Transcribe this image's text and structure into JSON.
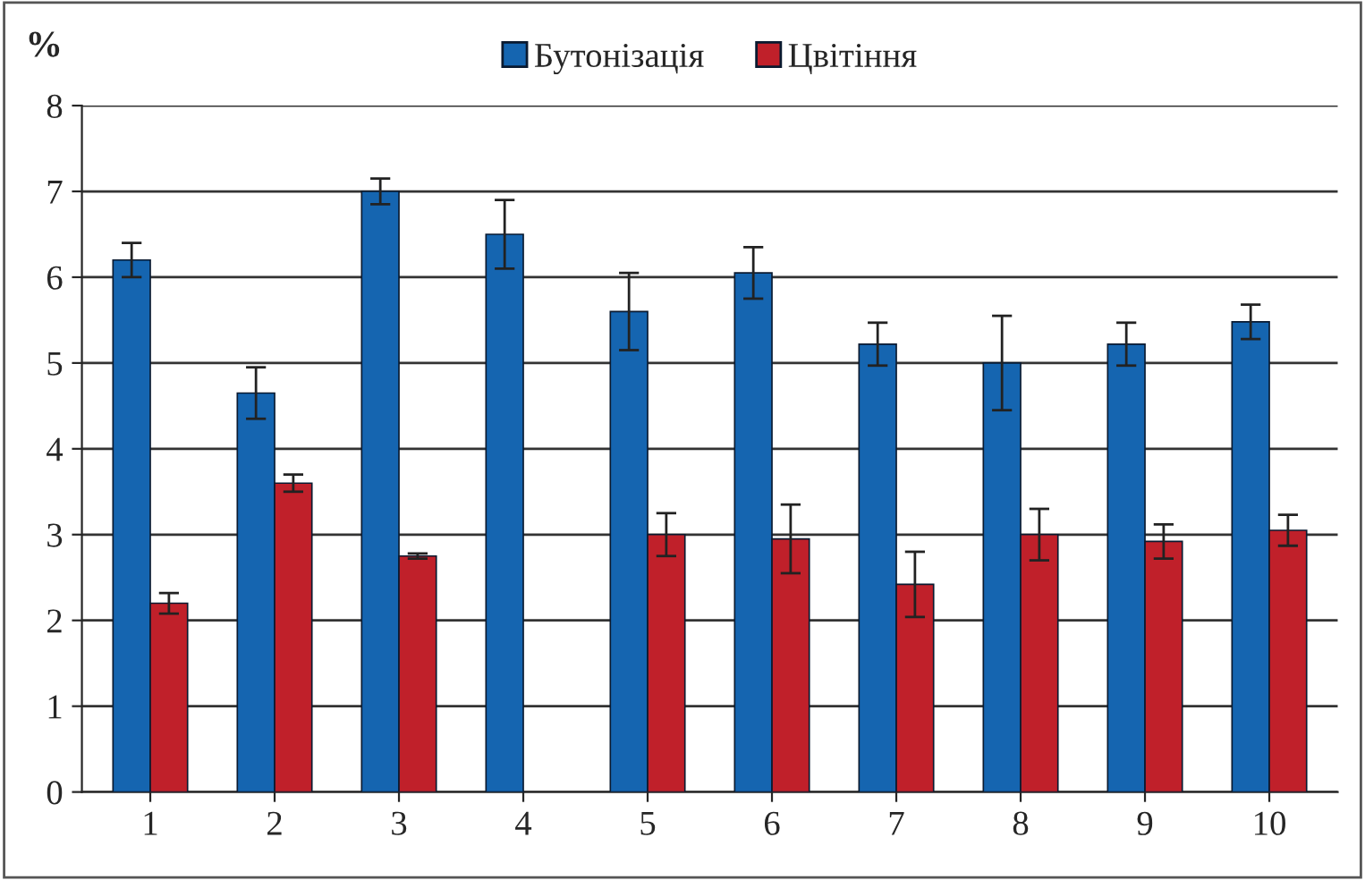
{
  "chart_data": {
    "type": "bar",
    "ylabel": "%",
    "categories": [
      "1",
      "2",
      "3",
      "4",
      "5",
      "6",
      "7",
      "8",
      "9",
      "10"
    ],
    "series": [
      {
        "name": "Бутонізація",
        "color": "#1565b0",
        "values": [
          6.2,
          4.65,
          7.0,
          6.5,
          5.6,
          6.05,
          5.22,
          5.0,
          5.22,
          5.48
        ],
        "errors": [
          0.2,
          0.3,
          0.15,
          0.4,
          0.45,
          0.3,
          0.25,
          0.55,
          0.25,
          0.2
        ]
      },
      {
        "name": "Цвітіння",
        "color": "#c0202a",
        "values": [
          2.2,
          3.6,
          2.75,
          null,
          3.0,
          2.95,
          2.42,
          3.0,
          2.92,
          3.05
        ],
        "errors": [
          0.12,
          0.1,
          0.03,
          null,
          0.25,
          0.4,
          0.38,
          0.3,
          0.2,
          0.18
        ]
      }
    ],
    "ylim": [
      0,
      8
    ],
    "yticks": [
      0,
      1,
      2,
      3,
      4,
      5,
      6,
      7,
      8
    ],
    "grid": "y",
    "legend": "top"
  }
}
